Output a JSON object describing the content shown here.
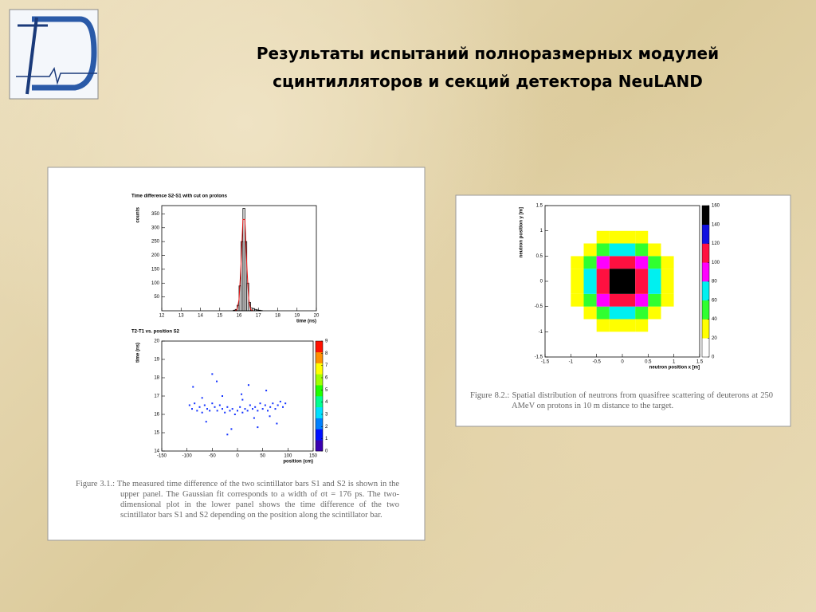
{
  "slide": {
    "title": "Результаты испытаний полноразмерных модулей сцинтилляторов и секций детектора NeuLAND"
  },
  "captions": [
    "Figure 3.1.: The measured time difference of the two scintillator bars S1 and S2 is shown in the upper panel. The Gaussian fit corresponds to a width of σt = 176 ps. The two-dimensional plot in the lower panel shows the time difference of the two scintillator bars S1 and S2 depending on the position along the scintillator bar.",
    "Figure 8.2.: Spatial distribution of neutrons from quasifree scattering of deuterons at 250 AMeV on protons in 10 m distance to the target."
  ],
  "chart_data": [
    {
      "type": "histogram",
      "title": "Time difference S2-S1 with cut on protons",
      "xlabel": "time (ns)",
      "ylabel": "counts",
      "bins": [
        15.6,
        15.7,
        15.8,
        15.9,
        16.0,
        16.1,
        16.2,
        16.3,
        16.4,
        16.5,
        16.6,
        16.7,
        16.8,
        16.9,
        17.0,
        17.1,
        17.2
      ],
      "values": [
        0,
        2,
        5,
        20,
        90,
        250,
        370,
        250,
        100,
        30,
        10,
        8,
        5,
        3,
        2,
        1
      ],
      "color": "#000000",
      "fit": {
        "x": [
          15.8,
          15.9,
          16.0,
          16.1,
          16.2,
          16.3,
          16.4,
          16.5,
          16.6,
          16.7
        ],
        "values": [
          0,
          5,
          41,
          165,
          330,
          330,
          165,
          41,
          5,
          0
        ],
        "color": "#e01010"
      },
      "xlim": [
        12,
        20
      ],
      "xticks": [
        12,
        13,
        14,
        15,
        16,
        17,
        18,
        19,
        20
      ],
      "ylim": [
        0,
        380
      ],
      "yticks": [
        50,
        100,
        150,
        200,
        250,
        300,
        350
      ]
    },
    {
      "type": "scatter",
      "title": "T2-T1 vs. position S2",
      "xlabel": "position (cm)",
      "ylabel": "time (ns)",
      "x": [
        -95,
        -90,
        -85,
        -80,
        -75,
        -70,
        -65,
        -60,
        -55,
        -50,
        -45,
        -40,
        -35,
        -30,
        -25,
        -20,
        -15,
        -10,
        -5,
        0,
        5,
        10,
        15,
        20,
        25,
        30,
        35,
        40,
        45,
        50,
        55,
        60,
        65,
        70,
        75,
        80,
        85,
        90,
        95,
        -88,
        -62,
        -41,
        -12,
        8,
        33,
        57,
        78,
        -70,
        -20,
        22,
        64,
        -50,
        40,
        -30,
        10
      ],
      "values": [
        16.5,
        16.3,
        16.6,
        16.2,
        16.4,
        16.1,
        16.5,
        16.3,
        16.2,
        16.6,
        16.4,
        16.2,
        16.5,
        16.3,
        16.1,
        16.4,
        16.2,
        16.3,
        16.0,
        16.2,
        16.4,
        16.1,
        16.3,
        16.2,
        16.5,
        16.3,
        16.4,
        16.2,
        16.6,
        16.3,
        16.5,
        16.2,
        16.4,
        16.6,
        16.3,
        16.5,
        16.7,
        16.4,
        16.6,
        17.5,
        15.6,
        17.8,
        15.2,
        17.1,
        15.8,
        17.3,
        15.5,
        16.9,
        14.9,
        17.6,
        15.9,
        18.2,
        15.3,
        17.0,
        16.8
      ],
      "color": "#1030ff",
      "xlim": [
        -150,
        150
      ],
      "xticks": [
        -150,
        -100,
        -50,
        0,
        50,
        100,
        150
      ],
      "ylim": [
        14,
        20
      ],
      "yticks": [
        14,
        15,
        16,
        17,
        18,
        19,
        20
      ],
      "zlim": [
        0,
        9
      ],
      "zticks": [
        0,
        1,
        2,
        3,
        4,
        5,
        6,
        7,
        8,
        9
      ],
      "colors": [
        "#3a00b0",
        "#0010ff",
        "#0080ff",
        "#00e0ff",
        "#00ff90",
        "#20ff00",
        "#a0ff00",
        "#ffff00",
        "#ff9000",
        "#ff1000"
      ]
    },
    {
      "type": "heatmap",
      "xlabel": "neutron position x [m]",
      "ylabel": "neutron position y [m]",
      "xbins": [
        -1.5,
        -1.25,
        -1.0,
        -0.75,
        -0.5,
        -0.25,
        0,
        0.25,
        0.5,
        0.75,
        1.0,
        1.25,
        1.5
      ],
      "ybins": [
        -1.5,
        -1.25,
        -1.0,
        -0.75,
        -0.5,
        -0.25,
        0,
        0.25,
        0.5,
        0.75,
        1.0,
        1.25,
        1.5
      ],
      "z": [
        [
          0,
          0,
          1,
          1,
          2,
          3,
          3,
          2,
          1,
          1,
          0,
          0
        ],
        [
          0,
          1,
          2,
          5,
          9,
          11,
          11,
          9,
          5,
          2,
          1,
          0
        ],
        [
          1,
          2,
          7,
          14,
          24,
          31,
          31,
          24,
          14,
          7,
          2,
          1
        ],
        [
          1,
          5,
          14,
          31,
          53,
          69,
          69,
          53,
          31,
          14,
          5,
          1
        ],
        [
          2,
          9,
          24,
          53,
          89,
          116,
          116,
          89,
          53,
          24,
          9,
          2
        ],
        [
          3,
          11,
          31,
          69,
          116,
          150,
          150,
          116,
          69,
          31,
          11,
          3
        ],
        [
          3,
          11,
          31,
          69,
          116,
          150,
          150,
          116,
          69,
          31,
          11,
          3
        ],
        [
          2,
          9,
          24,
          53,
          89,
          116,
          116,
          89,
          53,
          24,
          9,
          2
        ],
        [
          1,
          5,
          14,
          31,
          53,
          69,
          69,
          53,
          31,
          14,
          5,
          1
        ],
        [
          1,
          2,
          7,
          14,
          24,
          31,
          31,
          24,
          14,
          7,
          2,
          1
        ],
        [
          0,
          1,
          2,
          5,
          9,
          11,
          11,
          9,
          5,
          2,
          1,
          0
        ],
        [
          0,
          0,
          1,
          1,
          2,
          3,
          3,
          2,
          1,
          1,
          0,
          0
        ]
      ],
      "xlim": [
        -1.5,
        1.5
      ],
      "xticks": [
        -1.5,
        -1,
        -0.5,
        0,
        0.5,
        1,
        1.5
      ],
      "ylim": [
        -1.5,
        1.5
      ],
      "yticks": [
        -1.5,
        -1,
        -0.5,
        0,
        0.5,
        1,
        1.5
      ],
      "zlim": [
        0,
        160
      ],
      "zticks": [
        0,
        20,
        40,
        60,
        80,
        100,
        120,
        140,
        160
      ],
      "colors": [
        "#ffffff",
        "#ffff00",
        "#30ff30",
        "#00f0f0",
        "#ff00ff",
        "#ff1040",
        "#1010e0",
        "#000000"
      ]
    }
  ]
}
